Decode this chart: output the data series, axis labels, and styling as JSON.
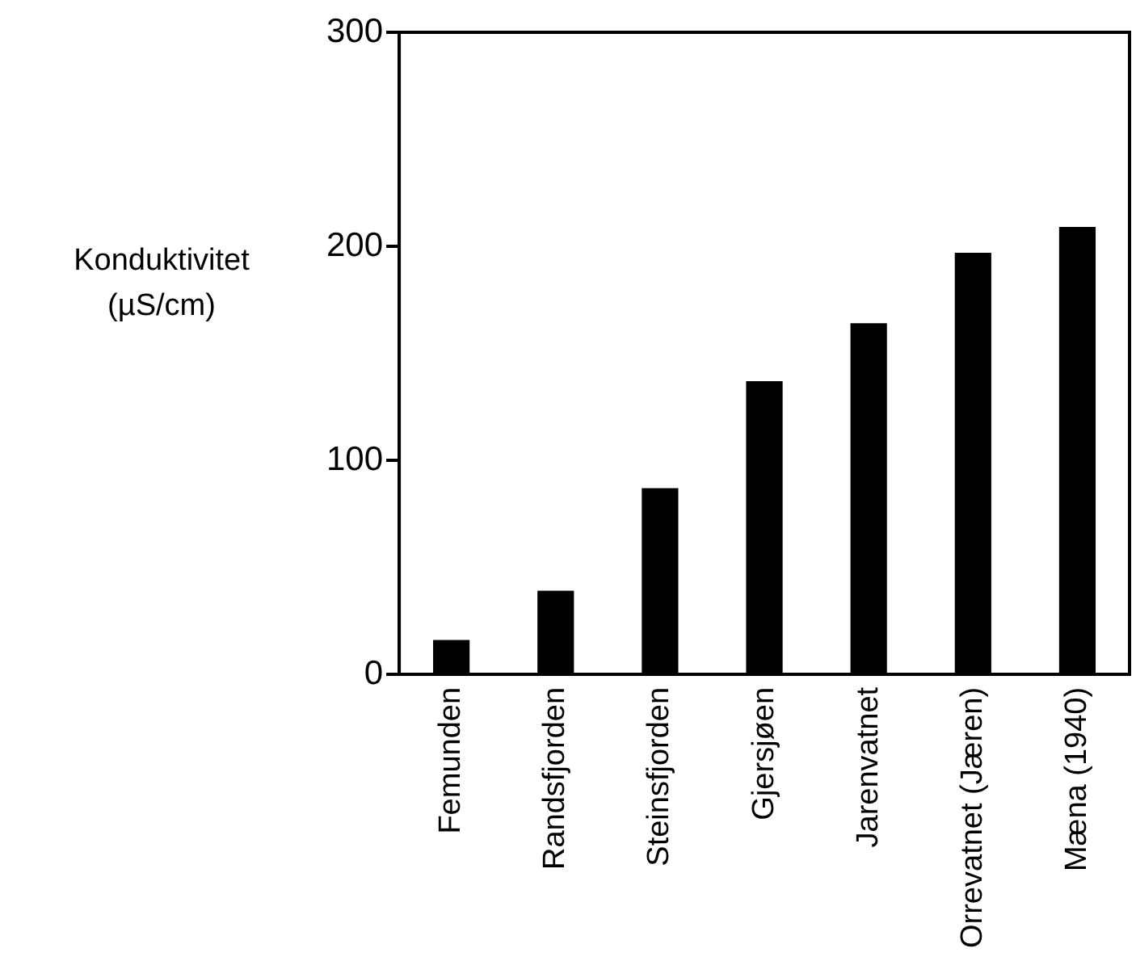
{
  "chart_data": {
    "type": "bar",
    "ylabel": "Konduktivitet (µS/cm)",
    "categories": [
      "Femunden",
      "Randsfjorden",
      "Steinsfjorden",
      "Gjersjøen",
      "Jarenvatnet",
      "Orrevatnet (Jæren)",
      "Mæna (1940)"
    ],
    "values": [
      16,
      39,
      87,
      137,
      164,
      197,
      209
    ],
    "color": "#000000",
    "ylim": [
      0,
      300
    ],
    "yticks": [
      0,
      100,
      200,
      300
    ],
    "grid": false,
    "legend": false
  }
}
